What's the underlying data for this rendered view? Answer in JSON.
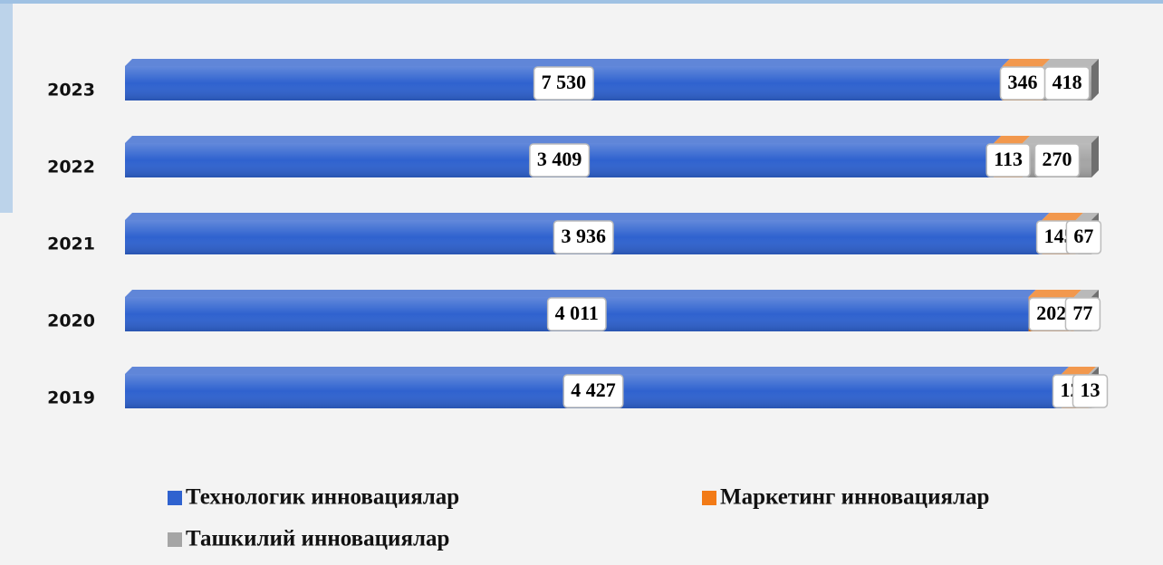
{
  "chart_data": {
    "type": "bar",
    "orientation": "horizontal",
    "stacking": "percent",
    "categories": [
      "2023",
      "2022",
      "2021",
      "2020",
      "2019"
    ],
    "series": [
      {
        "name": "Технологик инновациялар",
        "color": "#2f62cf",
        "values": [
          7530,
          3409,
          3936,
          4011,
          4427
        ],
        "value_labels": [
          "7 530",
          "3 409",
          "3 936",
          "4 011",
          "4 427"
        ]
      },
      {
        "name": "Маркетинг инновациялар",
        "color": "#f27a16",
        "values": [
          346,
          113,
          145,
          202,
          128
        ]
      },
      {
        "name": "Ташкилий инновациялар",
        "color": "#a5a5a5",
        "values": [
          418,
          270,
          67,
          77,
          13
        ]
      }
    ],
    "legend": "bottom"
  }
}
